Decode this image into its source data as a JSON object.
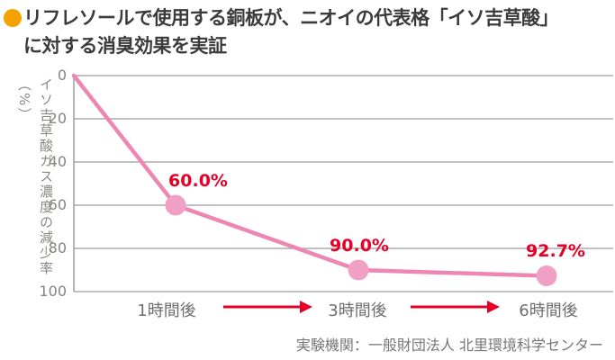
{
  "title": {
    "bullet_color": "#F5A200",
    "line1": "リフレソールで使用する銅板が、ニオイの代表格「イソ吉草酸」",
    "line2": "に対する消臭効果を実証"
  },
  "chart_data": {
    "type": "line",
    "title": "",
    "ylabel": "イソ吉草酸ガス濃度の減少率（%）",
    "xlabel": "",
    "categories": [
      "1時間後",
      "3時間後",
      "6時間後"
    ],
    "values": [
      60.0,
      90.0,
      92.7
    ],
    "value_labels": [
      "60.0%",
      "90.0%",
      "92.7%"
    ],
    "origin_value": 0,
    "y_ticks": [
      0,
      20,
      40,
      60,
      80,
      100
    ],
    "ylim": [
      0,
      100
    ],
    "y_axis_inverted": true,
    "grid": true,
    "legend": "none",
    "line_color": "#EE86B4",
    "point_color": "#F1A0C5",
    "value_label_color": "#E60027",
    "arrow_color": "#E60027",
    "grid_color": "#9B9B9B"
  },
  "footer": {
    "caption": "実験機関：一般財団法人 北里環境科学センター"
  }
}
